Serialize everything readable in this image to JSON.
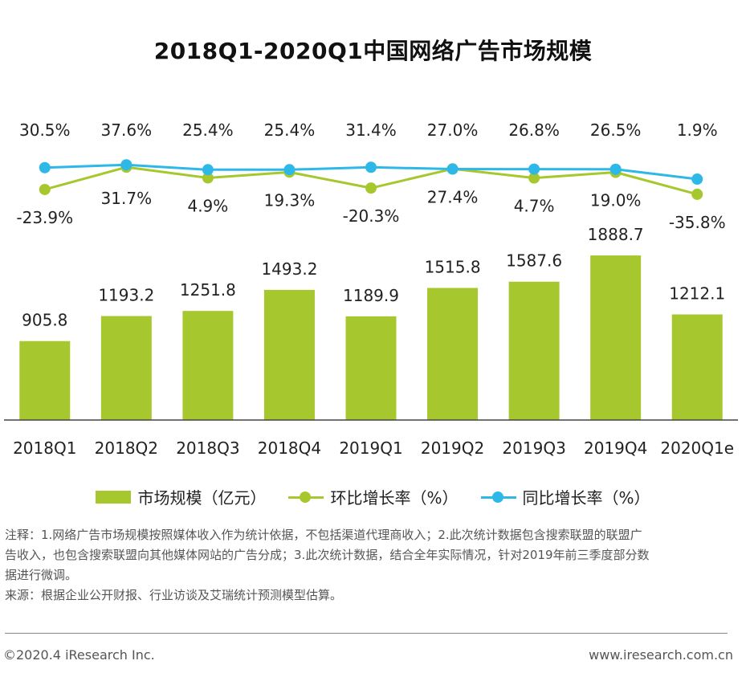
{
  "title": "2018Q1-2020Q1中国网络广告市场规模",
  "colors": {
    "bar": "#A6C82E",
    "qoq": "#A6C82E",
    "yoy": "#2EB8E8"
  },
  "chart_data": {
    "type": "bar",
    "title": "2018Q1-2020Q1中国网络广告市场规模",
    "categories": [
      "2018Q1",
      "2018Q2",
      "2018Q3",
      "2018Q4",
      "2019Q1",
      "2019Q2",
      "2019Q3",
      "2019Q4",
      "2020Q1e"
    ],
    "bar_series": {
      "name": "市场规模（亿元）",
      "values": [
        905.8,
        1193.2,
        1251.8,
        1493.2,
        1189.9,
        1515.8,
        1587.6,
        1888.7,
        1212.1
      ]
    },
    "bar_labels": [
      "905.8",
      "1193.2",
      "1251.8",
      "1493.2",
      "1189.9",
      "1515.8",
      "1587.6",
      "1888.7",
      "1212.1"
    ],
    "line_series": [
      {
        "key": "qoq",
        "name": "环比增长率（%）",
        "values": [
          -23.9,
          31.7,
          4.9,
          19.3,
          -20.3,
          27.4,
          4.7,
          19.0,
          -35.8
        ],
        "labels": [
          "-23.9%",
          "31.7%",
          "4.9%",
          "19.3%",
          "-20.3%",
          "27.4%",
          "4.7%",
          "19.0%",
          "-35.8%"
        ]
      },
      {
        "key": "yoy",
        "name": "同比增长率（%）",
        "values": [
          30.5,
          37.6,
          25.4,
          25.4,
          31.4,
          27.0,
          26.8,
          26.5,
          1.9
        ],
        "labels": [
          "30.5%",
          "37.6%",
          "25.4%",
          "25.4%",
          "31.4%",
          "27.0%",
          "26.8%",
          "26.5%",
          "1.9%"
        ]
      }
    ],
    "xlabel": "",
    "ylabel": "",
    "legend": "bottom",
    "grid": false
  },
  "legend": {
    "bar": "市场规模（亿元）",
    "qoq": "环比增长率（%）",
    "yoy": "同比增长率（%）"
  },
  "notes": [
    "注释：1.网络广告市场规模按照媒体收入作为统计依据，不包括渠道代理商收入；2.此次统计数据包含搜索联盟的联盟广",
    "告收入，也包含搜索联盟向其他媒体网站的广告分成；3.此次统计数据，结合全年实际情况，针对2019年前三季度部分数",
    "据进行微调。",
    "来源：根据企业公开财报、行业访谈及艾瑞统计预测模型估算。"
  ],
  "footer": {
    "copyright": "©2020.4 iResearch Inc.",
    "website": "www.iresearch.com.cn"
  }
}
